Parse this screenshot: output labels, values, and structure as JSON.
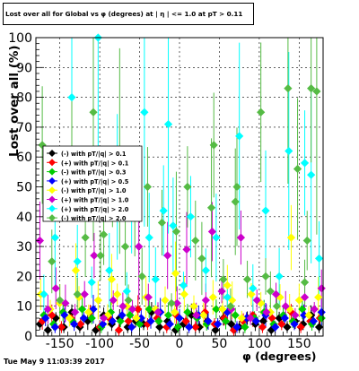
{
  "title": "Lost over all for Global vs φ (degrees) at | η | <= 1.0 at pT > 0.11",
  "timestamp": "Tue May  9 11:03:39 2017",
  "chart_data": {
    "type": "scatter",
    "title": "Lost over all for Global vs φ (degrees) at | η | <= 1.0 at pT > 0.11",
    "xlabel": "φ (degrees)",
    "ylabel": "Lost over all (%)",
    "xlim": [
      -180,
      180
    ],
    "ylim": [
      0,
      100
    ],
    "x_ticks": [
      -150,
      -100,
      -50,
      0,
      50,
      100,
      150
    ],
    "y_ticks": [
      0,
      10,
      20,
      30,
      40,
      50,
      60,
      70,
      80,
      90,
      100
    ],
    "grid": true,
    "legend_position": "upper-left",
    "series": [
      {
        "name": "(-) with pT/|q| > 0.1",
        "color": "#000000",
        "marker": "diamond",
        "points": [
          [
            -175,
            4
          ],
          [
            -165,
            2
          ],
          [
            -155,
            6
          ],
          [
            -145,
            3
          ],
          [
            -135,
            8
          ],
          [
            -125,
            3
          ],
          [
            -115,
            5
          ],
          [
            -105,
            2
          ],
          [
            -95,
            7
          ],
          [
            -85,
            4
          ],
          [
            -75,
            6
          ],
          [
            -65,
            3
          ],
          [
            -55,
            5
          ],
          [
            -45,
            4
          ],
          [
            -35,
            8
          ],
          [
            -25,
            3
          ],
          [
            -15,
            5
          ],
          [
            -5,
            2
          ],
          [
            5,
            4
          ],
          [
            15,
            7
          ],
          [
            25,
            3
          ],
          [
            35,
            5
          ],
          [
            45,
            2
          ],
          [
            55,
            6
          ],
          [
            65,
            4
          ],
          [
            75,
            3
          ],
          [
            85,
            6
          ],
          [
            95,
            4
          ],
          [
            105,
            5
          ],
          [
            115,
            2
          ],
          [
            125,
            6
          ],
          [
            135,
            3
          ],
          [
            145,
            5
          ],
          [
            155,
            4
          ],
          [
            165,
            7
          ],
          [
            175,
            3
          ]
        ]
      },
      {
        "name": "(+) with pT/|q| > 0.1",
        "color": "#ff0000",
        "marker": "diamond",
        "points": [
          [
            -172,
            5
          ],
          [
            -160,
            7
          ],
          [
            -148,
            3
          ],
          [
            -136,
            6
          ],
          [
            -124,
            4
          ],
          [
            -112,
            8
          ],
          [
            -100,
            3
          ],
          [
            -88,
            6
          ],
          [
            -76,
            2
          ],
          [
            -64,
            5
          ],
          [
            -52,
            9
          ],
          [
            -40,
            4
          ],
          [
            -28,
            6
          ],
          [
            -16,
            3
          ],
          [
            -4,
            7
          ],
          [
            8,
            5
          ],
          [
            20,
            3
          ],
          [
            32,
            8
          ],
          [
            44,
            4
          ],
          [
            56,
            6
          ],
          [
            68,
            2
          ],
          [
            80,
            5
          ],
          [
            92,
            7
          ],
          [
            104,
            3
          ],
          [
            116,
            6
          ],
          [
            128,
            4
          ],
          [
            140,
            8
          ],
          [
            152,
            3
          ],
          [
            164,
            5
          ],
          [
            176,
            6
          ]
        ]
      },
      {
        "name": "(-) with pT/|q| > 0.3",
        "color": "#00cc00",
        "marker": "diamond",
        "points": [
          [
            -170,
            7
          ],
          [
            -158,
            4
          ],
          [
            -146,
            8
          ],
          [
            -134,
            5
          ],
          [
            -122,
            9
          ],
          [
            -110,
            6
          ],
          [
            -98,
            3
          ],
          [
            -86,
            8
          ],
          [
            -74,
            5
          ],
          [
            -62,
            7
          ],
          [
            -50,
            4
          ],
          [
            -38,
            9
          ],
          [
            -26,
            5
          ],
          [
            -14,
            7
          ],
          [
            -2,
            3
          ],
          [
            10,
            8
          ],
          [
            22,
            6
          ],
          [
            34,
            4
          ],
          [
            46,
            9
          ],
          [
            58,
            5
          ],
          [
            70,
            7
          ],
          [
            82,
            3
          ],
          [
            94,
            6
          ],
          [
            106,
            8
          ],
          [
            118,
            4
          ],
          [
            130,
            7
          ],
          [
            142,
            5
          ],
          [
            154,
            9
          ],
          [
            166,
            4
          ],
          [
            178,
            6
          ]
        ]
      },
      {
        "name": "(+) with pT/|q| > 0.5",
        "color": "#0000ff",
        "marker": "diamond",
        "points": [
          [
            -168,
            6
          ],
          [
            -156,
            3
          ],
          [
            -144,
            7
          ],
          [
            -132,
            4
          ],
          [
            -120,
            6
          ],
          [
            -108,
            9
          ],
          [
            -96,
            4
          ],
          [
            -84,
            5
          ],
          [
            -72,
            7
          ],
          [
            -60,
            3
          ],
          [
            -48,
            6
          ],
          [
            -36,
            5
          ],
          [
            -24,
            8
          ],
          [
            -12,
            4
          ],
          [
            0,
            6
          ],
          [
            12,
            3
          ],
          [
            24,
            7
          ],
          [
            36,
            5
          ],
          [
            48,
            4
          ],
          [
            60,
            8
          ],
          [
            72,
            3
          ],
          [
            84,
            6
          ],
          [
            96,
            5
          ],
          [
            108,
            7
          ],
          [
            120,
            3
          ],
          [
            132,
            6
          ],
          [
            144,
            4
          ],
          [
            156,
            7
          ],
          [
            168,
            5
          ],
          [
            178,
            8
          ]
        ]
      },
      {
        "name": "(-) with pT/|q| > 1.0",
        "color": "#ffff00",
        "marker": "diamond",
        "points": [
          [
            -174,
            14
          ],
          [
            -162,
            9
          ],
          [
            -150,
            11
          ],
          [
            -138,
            6
          ],
          [
            -126,
            13
          ],
          [
            -114,
            8
          ],
          [
            -102,
            12
          ],
          [
            -90,
            7
          ],
          [
            -78,
            14
          ],
          [
            -66,
            10
          ],
          [
            -54,
            6
          ],
          [
            -42,
            13
          ],
          [
            -30,
            9
          ],
          [
            -18,
            12
          ],
          [
            -6,
            8
          ],
          [
            6,
            14
          ],
          [
            18,
            10
          ],
          [
            30,
            7
          ],
          [
            42,
            13
          ],
          [
            54,
            9
          ],
          [
            66,
            12
          ],
          [
            78,
            6
          ],
          [
            90,
            14
          ],
          [
            102,
            11
          ],
          [
            114,
            8
          ],
          [
            126,
            13
          ],
          [
            138,
            9
          ],
          [
            150,
            12
          ],
          [
            162,
            7
          ],
          [
            174,
            13
          ],
          [
            -130,
            22
          ],
          [
            -85,
            19
          ],
          [
            -5,
            21
          ],
          [
            60,
            17
          ],
          [
            140,
            33
          ]
        ]
      },
      {
        "name": "(+) with pT/|q| > 1.0",
        "color": "#cc00cc",
        "marker": "diamond",
        "points": [
          [
            -175,
            32
          ],
          [
            -165,
            9
          ],
          [
            -155,
            16
          ],
          [
            -143,
            11
          ],
          [
            -131,
            8
          ],
          [
            -119,
            14
          ],
          [
            -107,
            27
          ],
          [
            -95,
            6
          ],
          [
            -83,
            12
          ],
          [
            -71,
            10
          ],
          [
            -59,
            9
          ],
          [
            -51,
            30
          ],
          [
            -39,
            13
          ],
          [
            -27,
            8
          ],
          [
            -15,
            27
          ],
          [
            -3,
            11
          ],
          [
            9,
            29
          ],
          [
            21,
            7
          ],
          [
            33,
            12
          ],
          [
            41,
            35
          ],
          [
            53,
            15
          ],
          [
            65,
            9
          ],
          [
            77,
            33
          ],
          [
            89,
            6
          ],
          [
            97,
            12
          ],
          [
            109,
            8
          ],
          [
            121,
            14
          ],
          [
            133,
            10
          ],
          [
            145,
            7
          ],
          [
            157,
            13
          ],
          [
            169,
            9
          ],
          [
            178,
            16
          ]
        ]
      },
      {
        "name": "(+) with pT/|q| > 2.0",
        "color": "#00ffff",
        "marker": "diamond",
        "points": [
          [
            -170,
            14
          ],
          [
            -156,
            33
          ],
          [
            -135,
            80
          ],
          [
            -128,
            25
          ],
          [
            -102,
            100
          ],
          [
            -78,
            50
          ],
          [
            -60,
            42
          ],
          [
            -44,
            75
          ],
          [
            -38,
            33
          ],
          [
            -20,
            42
          ],
          [
            -14,
            71
          ],
          [
            -8,
            37
          ],
          [
            14,
            40
          ],
          [
            33,
            22
          ],
          [
            46,
            33
          ],
          [
            75,
            67
          ],
          [
            108,
            42
          ],
          [
            137,
            62
          ],
          [
            157,
            58
          ],
          [
            165,
            54
          ],
          [
            -110,
            18
          ],
          [
            -88,
            22
          ],
          [
            -66,
            15
          ],
          [
            -30,
            19
          ],
          [
            5,
            17
          ],
          [
            60,
            13
          ],
          [
            92,
            16
          ],
          [
            125,
            20
          ],
          [
            175,
            26
          ]
        ]
      },
      {
        "name": "(-) with pT/|q| > 2.0",
        "color": "#55bb44",
        "marker": "diamond",
        "points": [
          [
            -172,
            64
          ],
          [
            -160,
            25
          ],
          [
            -150,
            12
          ],
          [
            -135,
            62
          ],
          [
            -118,
            33
          ],
          [
            -108,
            75
          ],
          [
            -95,
            34
          ],
          [
            -84,
            50
          ],
          [
            -75,
            62
          ],
          [
            -68,
            30
          ],
          [
            -56,
            45
          ],
          [
            -47,
            20
          ],
          [
            -40,
            50
          ],
          [
            -22,
            38
          ],
          [
            -10,
            11
          ],
          [
            10,
            50
          ],
          [
            20,
            32
          ],
          [
            40,
            43
          ],
          [
            43,
            64
          ],
          [
            55,
            19
          ],
          [
            72,
            50
          ],
          [
            70,
            45
          ],
          [
            85,
            19
          ],
          [
            102,
            75
          ],
          [
            108,
            20
          ],
          [
            122,
            10
          ],
          [
            136,
            83
          ],
          [
            148,
            56
          ],
          [
            160,
            32
          ],
          [
            165,
            83
          ],
          [
            172,
            82
          ],
          [
            -128,
            14
          ],
          [
            -99,
            27
          ],
          [
            -64,
            12
          ],
          [
            -4,
            35
          ],
          [
            28,
            26
          ],
          [
            64,
            10
          ],
          [
            114,
            15
          ],
          [
            157,
            18
          ]
        ]
      }
    ]
  }
}
